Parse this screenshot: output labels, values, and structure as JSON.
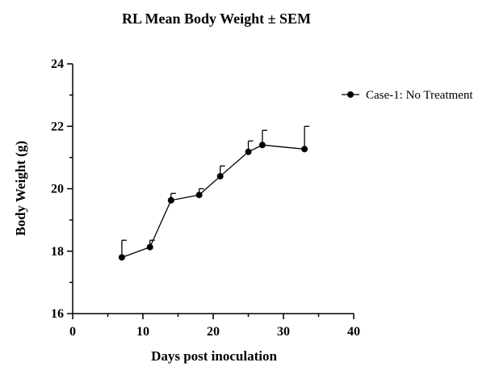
{
  "chart_data": {
    "type": "line",
    "title": "RL Mean Body Weight ± SEM",
    "xlabel": "Days post inoculation",
    "ylabel": "Body Weight (g)",
    "xlim": [
      0,
      40
    ],
    "ylim": [
      16,
      24
    ],
    "xticks": [
      "0",
      "10",
      "20",
      "30",
      "40"
    ],
    "yticks": [
      "16",
      "18",
      "20",
      "22",
      "24"
    ],
    "grid": false,
    "legend_position": "top-right",
    "series": [
      {
        "name": "Case-1: No Treatment",
        "color": "#000000",
        "x": [
          7,
          11,
          14,
          18,
          21,
          25,
          27,
          33
        ],
        "y": [
          17.8,
          18.13,
          19.63,
          19.8,
          20.4,
          21.18,
          21.4,
          21.27
        ],
        "sem": [
          0.55,
          0.22,
          0.22,
          0.2,
          0.33,
          0.35,
          0.47,
          0.73
        ]
      }
    ]
  }
}
